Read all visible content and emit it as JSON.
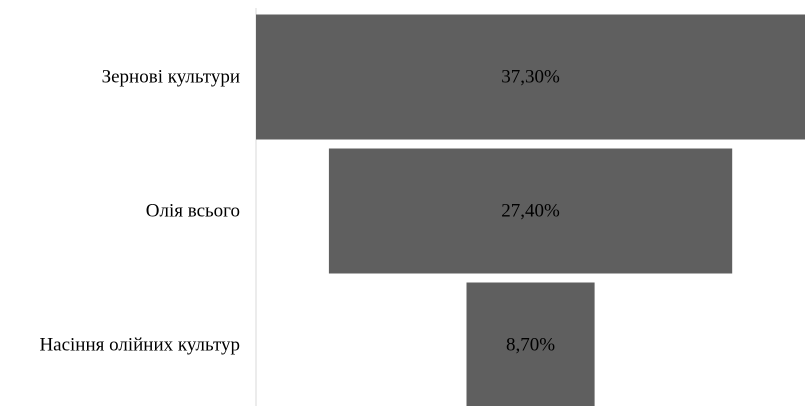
{
  "chart_data": {
    "type": "bar",
    "subtype": "funnel",
    "categories": [
      "Зернові культури",
      "Олія всього",
      "Насіння олійних культур"
    ],
    "values": [
      37.3,
      27.4,
      8.7
    ],
    "value_labels": [
      "37,30%",
      "27,40%",
      "8,70%"
    ],
    "unit": "%",
    "title": "",
    "xlabel": "",
    "ylabel": "",
    "xlim": [
      -18.65,
      18.65
    ],
    "grid": false,
    "legend": "none",
    "colors": {
      "bar": "#5f5f5f",
      "axis": "#d9d9d9",
      "text": "#000000",
      "background": "#ffffff"
    }
  }
}
